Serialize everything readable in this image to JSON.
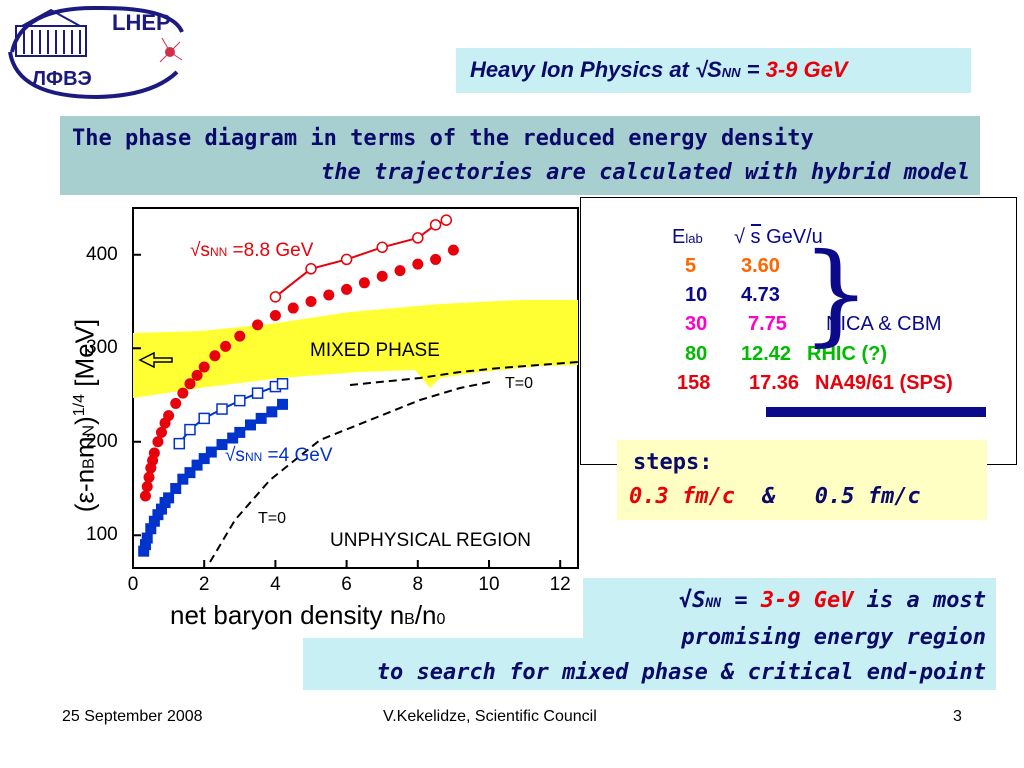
{
  "logo": {
    "top_text": "LHEP",
    "bottom_text": "ЛФВЭ"
  },
  "title": {
    "prefix": "Heavy Ion Physics at ",
    "sqrt_s": "√S",
    "sub": "NN",
    "eq": " = ",
    "value": "3-9 GeV"
  },
  "subtitle": {
    "line1": "The phase diagram in terms of the reduced energy density",
    "line2": "the trajectories are calculated with hybrid model"
  },
  "plot": {
    "y_axis_label": "(ε-n",
    "y_axis_label_b": "B",
    "y_axis_label_m": "m",
    "y_axis_label_n": "N",
    "y_axis_label_tail": ")",
    "y_axis_power": "1/4",
    "y_axis_unit": "[MeV]",
    "x_axis_label": "net baryon density n",
    "x_axis_sub": "B",
    "x_axis_tail": "/n",
    "x_axis_sub2": "0",
    "region_mixed": "MIXED PHASE",
    "region_unphysical": "UNPHYSICAL REGION",
    "t0_upper": "T=0",
    "t0_lower": "T=0",
    "curve_high_label_pre": "√s",
    "curve_high_label_sub": "NN",
    "curve_high_label_val": " =8.8  GeV",
    "curve_low_label_pre": "√s",
    "curve_low_label_sub": "NN",
    "curve_low_label_val": " =4    GeV",
    "x_ticks": [
      "0",
      "2",
      "4",
      "6",
      "8",
      "10",
      "12"
    ],
    "y_ticks": [
      "100",
      "200",
      "300",
      "400"
    ]
  },
  "chart_data": {
    "type": "scatter",
    "xlabel": "net baryon density n_B/n_0",
    "ylabel": "(ε-n_B m_N)^1/4 [MeV]",
    "xlim": [
      0,
      12.5
    ],
    "ylim": [
      65,
      450
    ],
    "series": [
      {
        "name": "√s_NN =8.8 GeV",
        "marker": "filled-circle",
        "color": "#e8000b",
        "x": [
          0.35,
          0.4,
          0.45,
          0.5,
          0.55,
          0.6,
          0.7,
          0.8,
          0.9,
          1.0,
          1.2,
          1.4,
          1.6,
          1.8,
          2.0,
          2.3,
          2.6,
          3.0,
          3.5,
          4.0,
          4.5,
          5.0,
          5.5,
          6.0,
          6.5,
          7.0,
          7.5,
          8.0,
          8.5,
          9.0
        ],
        "y": [
          142,
          152,
          162,
          172,
          180,
          188,
          200,
          210,
          220,
          228,
          241,
          252,
          262,
          271,
          280,
          292,
          302,
          313,
          325,
          335,
          343,
          350,
          357,
          363,
          370,
          377,
          383,
          390,
          395,
          405
        ]
      },
      {
        "name": "√s_NN =8.8 GeV (open)",
        "marker": "open-circle",
        "color": "#e8000b",
        "x": [
          4.0,
          5.0,
          6.0,
          7.0,
          8.0,
          8.5,
          8.8
        ],
        "y": [
          355,
          385,
          395,
          408,
          418,
          432,
          437
        ]
      },
      {
        "name": "√s_NN =4 GeV",
        "marker": "filled-square",
        "color": "#0033cc",
        "x": [
          0.3,
          0.35,
          0.4,
          0.5,
          0.6,
          0.7,
          0.8,
          0.9,
          1.0,
          1.2,
          1.4,
          1.6,
          1.8,
          2.0,
          2.2,
          2.5,
          2.8,
          3.0,
          3.3,
          3.6,
          3.9,
          4.2
        ],
        "y": [
          83,
          90,
          97,
          107,
          115,
          122,
          128,
          135,
          140,
          150,
          160,
          167,
          175,
          182,
          189,
          197,
          204,
          210,
          218,
          225,
          232,
          240
        ]
      },
      {
        "name": "√s_NN =4 GeV (open)",
        "marker": "open-square",
        "color": "#0033cc",
        "x": [
          1.3,
          1.6,
          2.0,
          2.5,
          3.0,
          3.5,
          4.0,
          4.2
        ],
        "y": [
          198,
          213,
          225,
          235,
          244,
          252,
          259,
          262
        ]
      }
    ]
  },
  "table": {
    "header_e": "E",
    "header_e_sub": "lab",
    "header_sqrt": "√",
    "header_s": "s",
    "header_unit": "GeV/u",
    "rows": [
      {
        "elab": "5",
        "sqrts": "3.60",
        "note": "",
        "color_e": "#ff6600",
        "color_s": "#ff6600"
      },
      {
        "elab": "10",
        "sqrts": "4.73",
        "note": "",
        "color_e": "#0a0a8a",
        "color_s": "#0a0a8a"
      },
      {
        "elab": "30",
        "sqrts": "7.75",
        "note": "NICA & CBM",
        "color_e": "#ff00cc",
        "color_s": "#ff00cc"
      },
      {
        "elab": "80",
        "sqrts": "12.42",
        "note": "RHIC (?)",
        "color_e": "#00bb00",
        "color_s": "#00bb00"
      },
      {
        "elab": "158",
        "sqrts": "17.36",
        "note": "NA49/61 (SPS)",
        "color_e": "#e8000b",
        "color_s": "#e8000b"
      }
    ]
  },
  "steps": {
    "label": "steps:",
    "v1": "0.3 fm/c",
    "amp": "&",
    "v2": "0.5 fm/c"
  },
  "conclusion": {
    "sqrt_s": "√S",
    "sub": "NN",
    "eq": " = ",
    "value": "3-9 GeV",
    "rest1": " is a most",
    "line2": "promising energy region",
    "line3": "to search for mixed phase & critical end-point"
  },
  "footer": {
    "date": "25 September 2008",
    "author": "V.Kekelidze, Scientific Council",
    "page": "3"
  }
}
